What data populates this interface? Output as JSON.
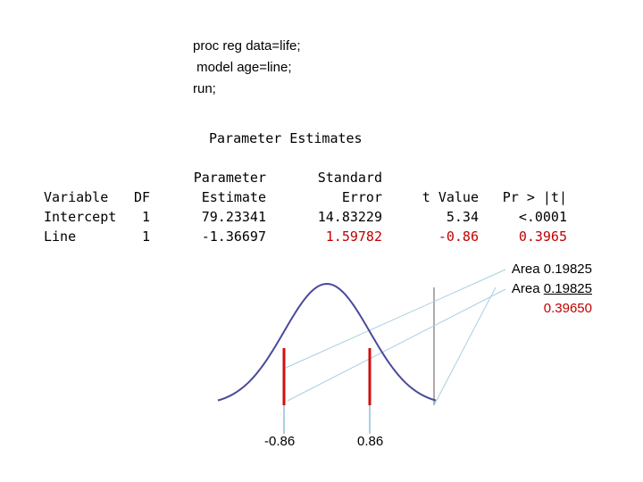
{
  "code": [
    "proc reg data=life;",
    " model age=line;",
    "run;"
  ],
  "table_title": "Parameter Estimates",
  "table": {
    "col_variable": [
      "",
      "Variable",
      "Intercept",
      "Line"
    ],
    "col_df": [
      "",
      "DF",
      "1",
      "1"
    ],
    "col_estimate": [
      "Parameter",
      "Estimate",
      "79.23341",
      "-1.36697"
    ],
    "col_se": [
      "Standard",
      "Error",
      "14.83229",
      "1.59782"
    ],
    "col_t": [
      "",
      "t Value",
      "5.34",
      "-0.86"
    ],
    "col_p": [
      "",
      "Pr > |t|",
      "<.0001",
      "0.3965"
    ]
  },
  "areas": {
    "label": "Area",
    "upper_value": "0.19825",
    "lower_value": "0.19825",
    "total": "0.39650"
  },
  "curve": {
    "critical_low_label": "-0.86",
    "critical_high_label": "0.86",
    "colors": {
      "curve": "#4a4a9a",
      "critical": "#d01010",
      "leader": "#a8d0e0",
      "axis": "#909090"
    }
  }
}
